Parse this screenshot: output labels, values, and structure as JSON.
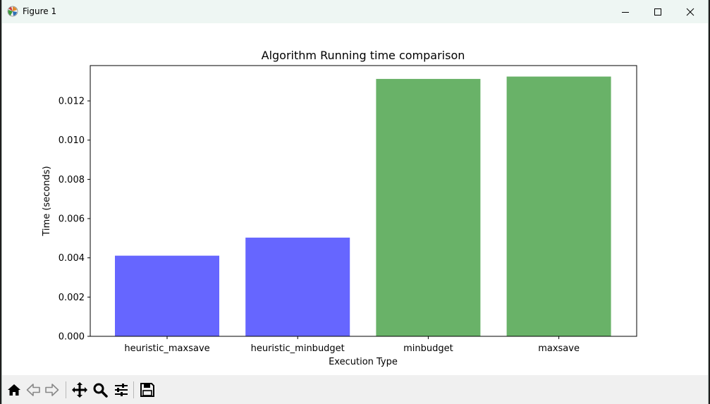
{
  "window": {
    "title": "Figure 1"
  },
  "toolbar": {
    "buttons": [
      {
        "name": "home-icon"
      },
      {
        "name": "back-icon"
      },
      {
        "name": "forward-icon"
      },
      {
        "name": "pan-icon"
      },
      {
        "name": "zoom-icon"
      },
      {
        "name": "configure-subplots-icon"
      },
      {
        "name": "save-icon"
      }
    ]
  },
  "chart_data": {
    "type": "bar",
    "title": "Algorithm Running time comparison",
    "xlabel": "Execution Type",
    "ylabel": "Time (seconds)",
    "categories": [
      "heuristic_maxsave",
      "heuristic_minbudget",
      "minbudget",
      "maxsave"
    ],
    "values": [
      0.00411,
      0.00503,
      0.01312,
      0.01324
    ],
    "colors": [
      "#6666ff",
      "#6666ff",
      "#69b268",
      "#69b268"
    ],
    "ylim": [
      0,
      0.0138
    ],
    "yticks": [
      "0.000",
      "0.002",
      "0.004",
      "0.006",
      "0.008",
      "0.010",
      "0.012"
    ],
    "grid": false,
    "legend": "none"
  }
}
